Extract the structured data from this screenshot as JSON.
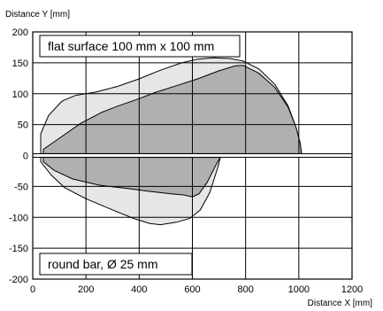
{
  "chart_data": {
    "type": "area",
    "xlabel": "Distance X [mm]",
    "ylabel": "Distance Y [mm]",
    "xlim": [
      0,
      1200
    ],
    "ylim": [
      -200,
      200
    ],
    "xticks": [
      0,
      200,
      400,
      600,
      800,
      1000,
      1200
    ],
    "yticks": [
      200,
      150,
      100,
      50,
      0,
      -50,
      -100,
      -150,
      -200
    ],
    "grid": true,
    "annotations": [
      {
        "text": "flat surface 100 mm x 100 mm",
        "target": "upper"
      },
      {
        "text": "round bar, Ø 25 mm",
        "target": "lower"
      }
    ],
    "series": [
      {
        "fill": "#e6e6e6",
        "points": [
          [
            30,
            35
          ],
          [
            60,
            65
          ],
          [
            110,
            88
          ],
          [
            160,
            97
          ],
          [
            240,
            103
          ],
          [
            320,
            112
          ],
          [
            400,
            124
          ],
          [
            480,
            138
          ],
          [
            560,
            150
          ],
          [
            620,
            156
          ],
          [
            680,
            158
          ],
          [
            740,
            157
          ],
          [
            790,
            153
          ],
          [
            850,
            140
          ],
          [
            910,
            115
          ],
          [
            960,
            80
          ],
          [
            990,
            45
          ],
          [
            1005,
            20
          ],
          [
            1010,
            5
          ],
          [
            1010,
            3
          ],
          [
            30,
            3
          ]
        ]
      },
      {
        "fill": "#b0b0b0",
        "points": [
          [
            40,
            10
          ],
          [
            100,
            28
          ],
          [
            180,
            52
          ],
          [
            260,
            70
          ],
          [
            320,
            80
          ],
          [
            400,
            92
          ],
          [
            460,
            102
          ],
          [
            540,
            113
          ],
          [
            620,
            124
          ],
          [
            700,
            137
          ],
          [
            760,
            145
          ],
          [
            790,
            146
          ],
          [
            850,
            133
          ],
          [
            910,
            110
          ],
          [
            960,
            78
          ],
          [
            990,
            45
          ],
          [
            1005,
            20
          ],
          [
            1010,
            3
          ],
          [
            40,
            3
          ]
        ]
      },
      {
        "fill": "#e6e6e6",
        "points": [
          [
            30,
            -3
          ],
          [
            30,
            -10
          ],
          [
            70,
            -32
          ],
          [
            120,
            -52
          ],
          [
            200,
            -70
          ],
          [
            300,
            -88
          ],
          [
            380,
            -102
          ],
          [
            440,
            -110
          ],
          [
            480,
            -112
          ],
          [
            540,
            -108
          ],
          [
            590,
            -102
          ],
          [
            630,
            -88
          ],
          [
            665,
            -60
          ],
          [
            695,
            -20
          ],
          [
            705,
            -3
          ]
        ]
      },
      {
        "fill": "#b0b0b0",
        "points": [
          [
            40,
            -3
          ],
          [
            40,
            -10
          ],
          [
            80,
            -24
          ],
          [
            150,
            -38
          ],
          [
            250,
            -48
          ],
          [
            350,
            -53
          ],
          [
            440,
            -58
          ],
          [
            520,
            -62
          ],
          [
            570,
            -64
          ],
          [
            600,
            -67
          ],
          [
            625,
            -62
          ],
          [
            655,
            -44
          ],
          [
            690,
            -14
          ],
          [
            705,
            -3
          ]
        ]
      }
    ]
  }
}
